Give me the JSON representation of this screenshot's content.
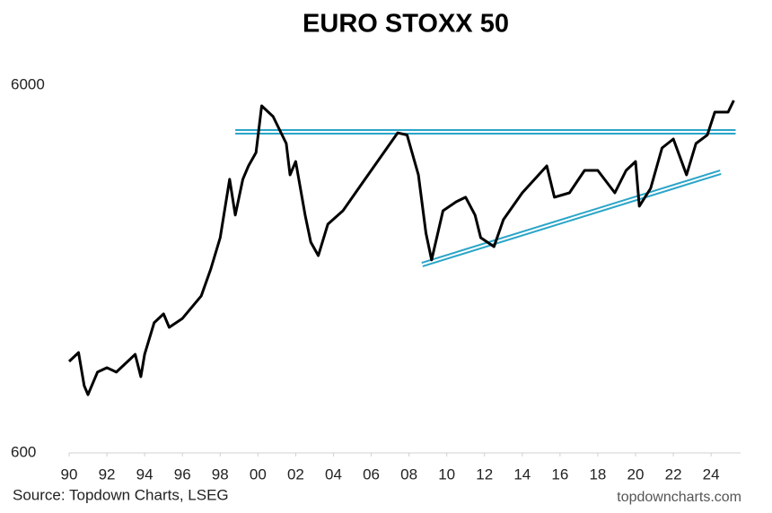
{
  "chart_data": {
    "type": "line",
    "title": "EURO STOXX 50",
    "log_scale": true,
    "color": "#000000",
    "x": [
      1990.0,
      1990.5,
      1990.8,
      1991.0,
      1991.5,
      1992.0,
      1992.5,
      1993.0,
      1993.5,
      1993.8,
      1994.0,
      1994.5,
      1995.0,
      1995.3,
      1996.0,
      1997.0,
      1997.5,
      1998.0,
      1998.5,
      1998.8,
      1999.2,
      1999.5,
      1999.9,
      2000.2,
      2000.8,
      2001.5,
      2001.7,
      2002.0,
      2002.5,
      2002.8,
      2003.2,
      2003.7,
      2004.5,
      2005.5,
      2006.5,
      2007.4,
      2007.9,
      2008.5,
      2008.9,
      2009.2,
      2009.8,
      2010.5,
      2011.0,
      2011.5,
      2011.8,
      2012.5,
      2013.0,
      2014.0,
      2015.3,
      2015.7,
      2016.5,
      2017.3,
      2018.0,
      2018.9,
      2019.5,
      2020.0,
      2020.2,
      2020.8,
      2021.4,
      2022.0,
      2022.7,
      2023.2,
      2023.8,
      2024.2,
      2024.9,
      2025.2
    ],
    "values": [
      1064,
      1125,
      914,
      864,
      995,
      1023,
      995,
      1052,
      1112,
      967,
      1112,
      1355,
      1433,
      1317,
      1392,
      1604,
      1897,
      2310,
      3328,
      2660,
      3328,
      3620,
      3936,
      5274,
      4932,
      4164,
      3421,
      3720,
      2660,
      2245,
      2064,
      2513,
      2734,
      3234,
      3828,
      4454,
      4390,
      3421,
      2376,
      2009,
      2734,
      2892,
      2976,
      2660,
      2310,
      2183,
      2585,
      3059,
      3620,
      2976,
      3059,
      3520,
      3520,
      3059,
      3520,
      3720,
      2812,
      3145,
      4050,
      4283,
      3421,
      4164,
      4390,
      5070,
      5070,
      5455
    ],
    "trendlines": [
      {
        "x": [
          1998.8,
          2025.3
        ],
        "values": [
          4480,
          4480
        ],
        "color": "#2aa5c8"
      },
      {
        "x": [
          2008.7,
          2024.5
        ],
        "values": [
          1951,
          3480
        ],
        "color": "#2aa5c8"
      }
    ],
    "xlim": [
      1990,
      2025.8
    ],
    "xticks": [
      {
        "value": 1990,
        "label": "90"
      },
      {
        "value": 1992,
        "label": "92"
      },
      {
        "value": 1994,
        "label": "94"
      },
      {
        "value": 1996,
        "label": "96"
      },
      {
        "value": 1998,
        "label": "98"
      },
      {
        "value": 2000,
        "label": "00"
      },
      {
        "value": 2002,
        "label": "02"
      },
      {
        "value": 2004,
        "label": "04"
      },
      {
        "value": 2006,
        "label": "06"
      },
      {
        "value": 2008,
        "label": "08"
      },
      {
        "value": 2010,
        "label": "10"
      },
      {
        "value": 2012,
        "label": "12"
      },
      {
        "value": 2014,
        "label": "14"
      },
      {
        "value": 2016,
        "label": "16"
      },
      {
        "value": 2018,
        "label": "18"
      },
      {
        "value": 2020,
        "label": "20"
      },
      {
        "value": 2022,
        "label": "22"
      },
      {
        "value": 2024,
        "label": "24"
      }
    ],
    "ylim": [
      600,
      6000
    ],
    "yticks": [
      600,
      6000
    ],
    "source": "Source: Topdown Charts, LSEG",
    "website": "topdowncharts.com"
  }
}
